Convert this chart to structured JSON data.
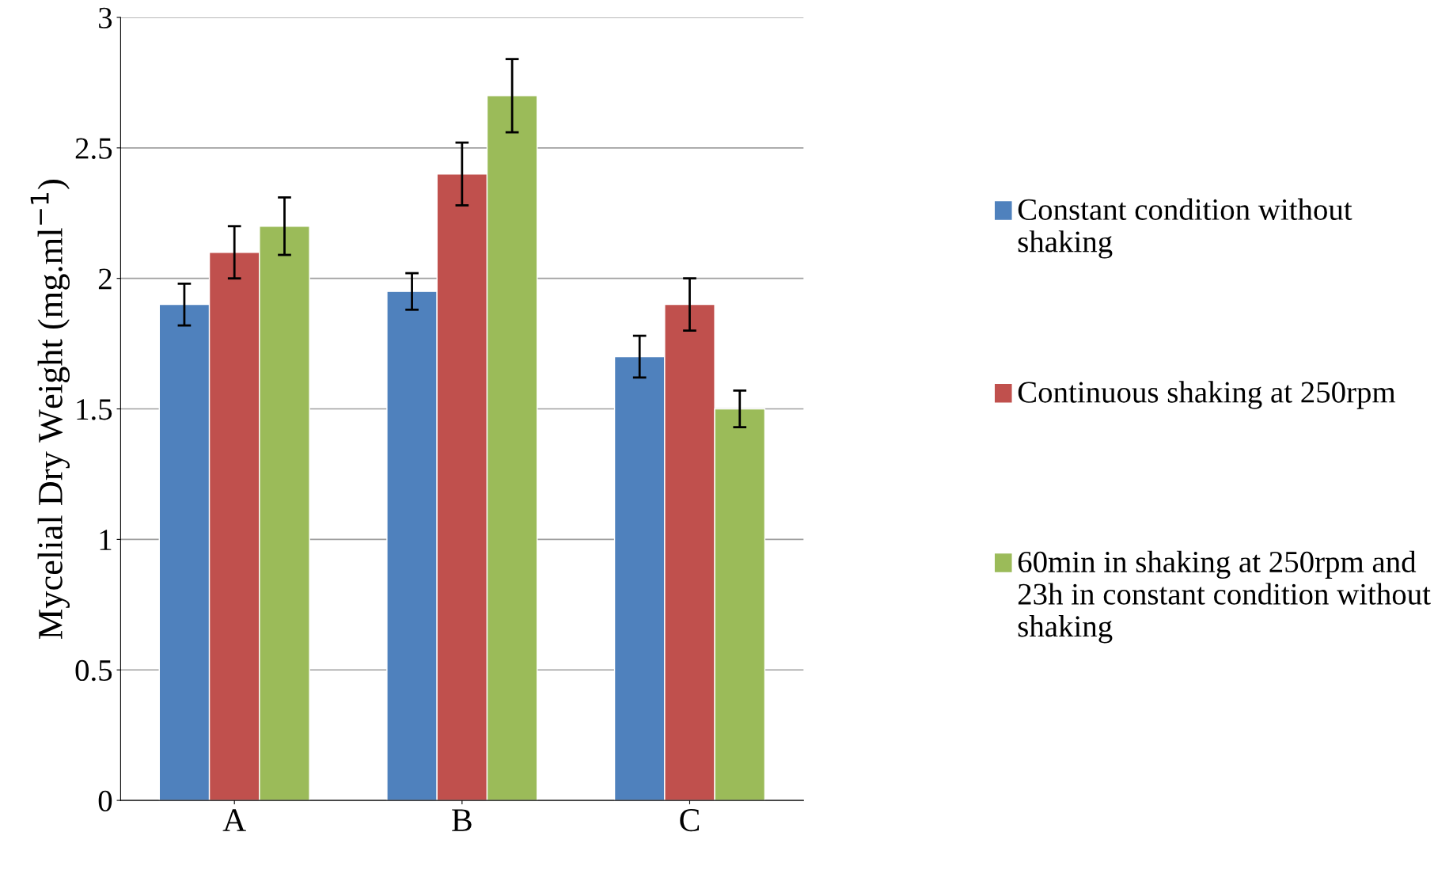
{
  "chart_data": {
    "type": "bar",
    "ylabel": "Mycelial Dry Weight (mg.ml$^{−1}$)",
    "categories": [
      "A",
      "B",
      "C"
    ],
    "series": [
      {
        "name": "Constant condition without shaking",
        "color": "#4f81bd",
        "values": [
          1.9,
          1.95,
          1.7
        ],
        "errors": [
          0.08,
          0.07,
          0.08
        ]
      },
      {
        "name": "Continuous shaking at 250rpm",
        "color": "#c0504d",
        "values": [
          2.1,
          2.4,
          1.9
        ],
        "errors": [
          0.1,
          0.12,
          0.1
        ]
      },
      {
        "name": "60min in shaking at 250rpm and 23h in constant condition without shaking",
        "color": "#9bbb59",
        "values": [
          2.2,
          2.7,
          1.5
        ],
        "errors": [
          0.11,
          0.14,
          0.07
        ]
      }
    ],
    "ylim": [
      0,
      3
    ],
    "yticks": [
      0,
      0.5,
      1,
      1.5,
      2,
      2.5,
      3
    ],
    "grid": "y",
    "legend": "right"
  }
}
